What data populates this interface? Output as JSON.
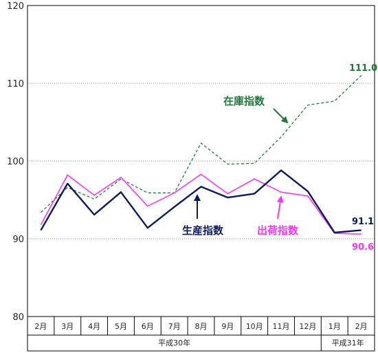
{
  "chart_data": {
    "type": "line",
    "categories": [
      "2月",
      "3月",
      "4月",
      "5月",
      "6月",
      "7月",
      "8月",
      "9月",
      "10月",
      "11月",
      "12月",
      "1月",
      "2月"
    ],
    "era_groups": [
      {
        "label": "平成30年",
        "from": 0,
        "to": 10
      },
      {
        "label": "平成31年",
        "from": 11,
        "to": 12
      }
    ],
    "ylim": [
      80,
      120
    ],
    "yticks": [
      "80",
      "90",
      "100",
      "110",
      "120"
    ],
    "grid": true,
    "series": [
      {
        "name": "生産指数",
        "color": "#0b1a5c",
        "style": "solid",
        "values": [
          91.1,
          97.1,
          93.1,
          96.0,
          91.4,
          94.1,
          96.7,
          95.3,
          95.8,
          98.8,
          96.1,
          90.8,
          91.1
        ]
      },
      {
        "name": "出荷指数",
        "color": "#ff33ff",
        "style": "solid",
        "values": [
          91.8,
          98.2,
          95.6,
          97.9,
          94.2,
          95.9,
          98.3,
          95.8,
          97.7,
          96.0,
          95.5,
          90.7,
          90.6
        ]
      },
      {
        "name": "在庫指数",
        "color": "#1e7a38",
        "style": "dashed",
        "values": [
          93.4,
          96.6,
          95.1,
          97.7,
          95.9,
          95.9,
          102.3,
          99.6,
          99.7,
          103.1,
          107.2,
          107.7,
          111.0
        ]
      }
    ],
    "data_labels": [
      "111.0",
      "91.1",
      "90.6"
    ]
  }
}
